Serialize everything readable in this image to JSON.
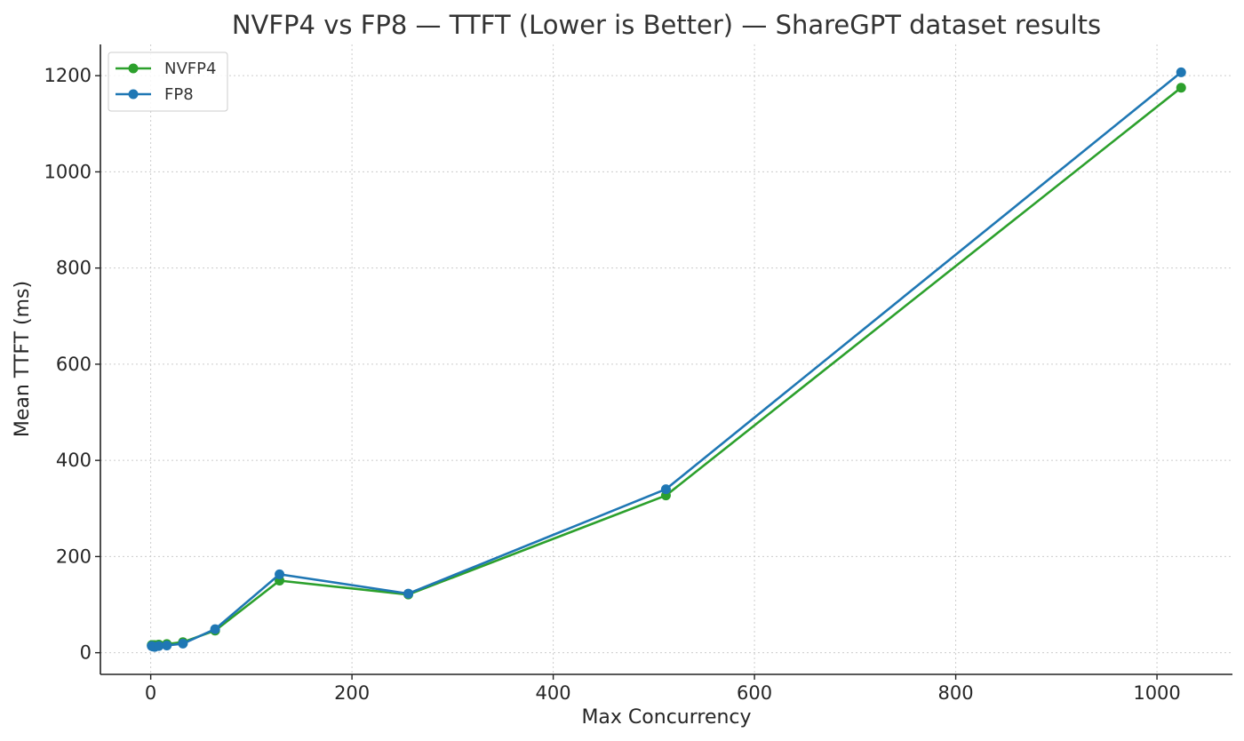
{
  "chart_data": {
    "type": "line",
    "title": "NVFP4 vs FP8 — TTFT (Lower is Better) — ShareGPT dataset results",
    "xlabel": "Max Concurrency",
    "ylabel": "Mean TTFT (ms)",
    "xlim": [
      -50,
      1075
    ],
    "ylim": [
      -45,
      1265
    ],
    "xticks": [
      0,
      200,
      400,
      600,
      800,
      1000
    ],
    "yticks": [
      0,
      200,
      400,
      600,
      800,
      1000,
      1200
    ],
    "grid": true,
    "legend_position": "top-left",
    "x": [
      1,
      2,
      4,
      8,
      16,
      32,
      64,
      128,
      256,
      512,
      1024
    ],
    "series": [
      {
        "name": "NVFP4",
        "color": "#2ca02c",
        "values": [
          16,
          16,
          16,
          17,
          18,
          22,
          46,
          150,
          121,
          327,
          1175
        ]
      },
      {
        "name": "FP8",
        "color": "#1f77b4",
        "values": [
          14,
          13,
          12,
          14,
          15,
          19,
          49,
          163,
          123,
          340,
          1207
        ]
      }
    ]
  }
}
